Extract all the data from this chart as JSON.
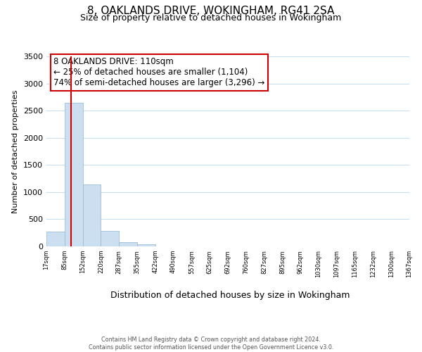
{
  "title": "8, OAKLANDS DRIVE, WOKINGHAM, RG41 2SA",
  "subtitle": "Size of property relative to detached houses in Wokingham",
  "xlabel": "Distribution of detached houses by size in Wokingham",
  "ylabel": "Number of detached properties",
  "bin_labels": [
    "17sqm",
    "85sqm",
    "152sqm",
    "220sqm",
    "287sqm",
    "355sqm",
    "422sqm",
    "490sqm",
    "557sqm",
    "625sqm",
    "692sqm",
    "760sqm",
    "827sqm",
    "895sqm",
    "962sqm",
    "1030sqm",
    "1097sqm",
    "1165sqm",
    "1232sqm",
    "1300sqm",
    "1367sqm"
  ],
  "bar_heights": [
    270,
    2650,
    1145,
    280,
    80,
    40,
    0,
    0,
    0,
    0,
    0,
    0,
    0,
    0,
    0,
    0,
    0,
    0,
    0,
    0
  ],
  "bar_color": "#ccdff0",
  "bar_edge_color": "#9bbdd6",
  "ylim": [
    0,
    3500
  ],
  "yticks": [
    0,
    500,
    1000,
    1500,
    2000,
    2500,
    3000,
    3500
  ],
  "property_line_x": 1.37,
  "property_line_color": "#cc0000",
  "annotation_title": "8 OAKLANDS DRIVE: 110sqm",
  "annotation_line1": "← 25% of detached houses are smaller (1,104)",
  "annotation_line2": "74% of semi-detached houses are larger (3,296) →",
  "annotation_box_color": "#ffffff",
  "annotation_box_edge": "#cc0000",
  "footer_line1": "Contains HM Land Registry data © Crown copyright and database right 2024.",
  "footer_line2": "Contains public sector information licensed under the Open Government Licence v3.0.",
  "background_color": "#ffffff",
  "grid_color": "#c8dff0"
}
